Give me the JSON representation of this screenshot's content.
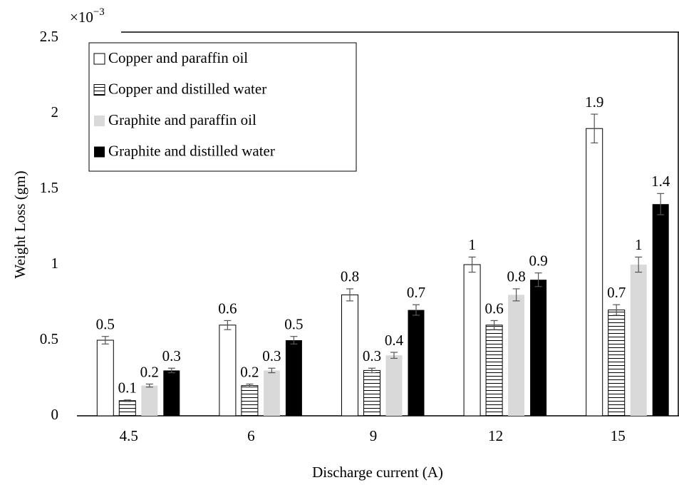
{
  "chart_data": {
    "type": "bar",
    "y_multiplier": {
      "base": "×10",
      "exponent": "−3"
    },
    "y_label": "Weight Loss (gm)",
    "x_label": "Discharge current (A)",
    "categories": [
      "4.5",
      "6",
      "9",
      "12",
      "15"
    ],
    "series": [
      {
        "name": "Copper and paraffin oil",
        "color": "#ffffff",
        "pattern": "none",
        "values": [
          0.5,
          0.6,
          0.8,
          1,
          1.9
        ],
        "errors": [
          0.025,
          0.03,
          0.04,
          0.05,
          0.095
        ]
      },
      {
        "name": "Copper and distilled water",
        "color": "#ffffff",
        "pattern": "horizontal-lines",
        "values": [
          0.1,
          0.2,
          0.3,
          0.6,
          0.7
        ],
        "errors": [
          0.005,
          0.01,
          0.015,
          0.03,
          0.035
        ]
      },
      {
        "name": "Graphite and paraffin oil",
        "color": "#d9d9d9",
        "pattern": "none",
        "values": [
          0.2,
          0.3,
          0.4,
          0.8,
          1
        ],
        "errors": [
          0.01,
          0.015,
          0.02,
          0.04,
          0.05
        ]
      },
      {
        "name": "Graphite and distilled water",
        "color": "#000000",
        "pattern": "none",
        "values": [
          0.3,
          0.5,
          0.7,
          0.9,
          1.4
        ],
        "errors": [
          0.015,
          0.025,
          0.035,
          0.045,
          0.07
        ]
      }
    ],
    "ylim": [
      0,
      2.5
    ],
    "yticks": [
      0,
      0.5,
      1,
      1.5,
      2,
      2.5
    ],
    "grid": false,
    "legend": "top-left"
  }
}
